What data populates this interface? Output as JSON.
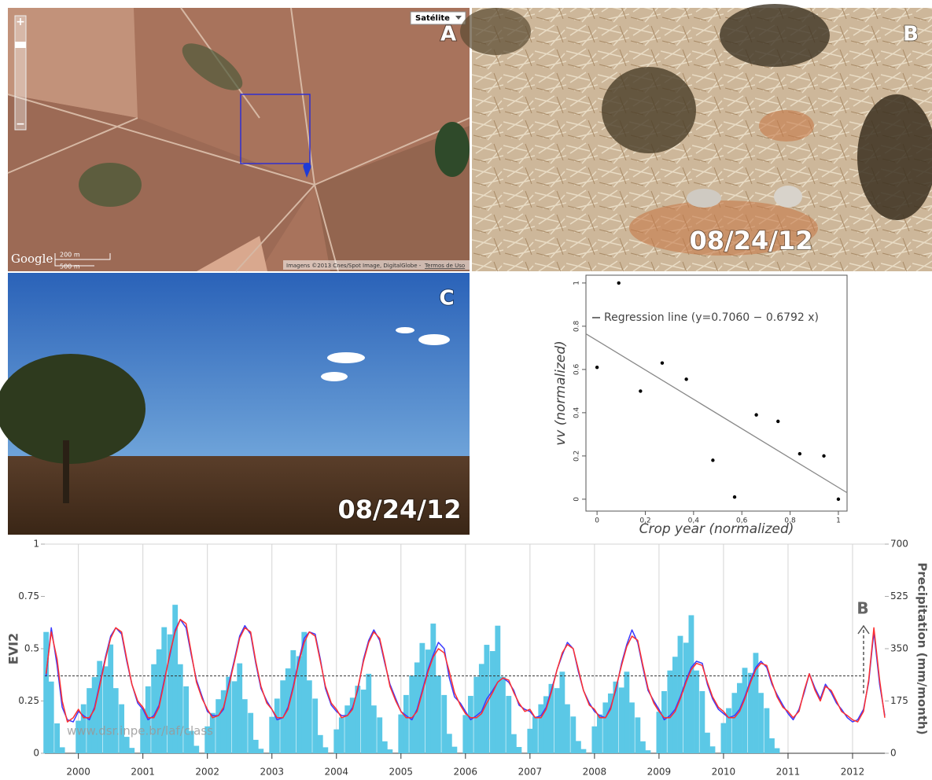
{
  "panels": {
    "A": {
      "label": "A",
      "layer_button": "Satélite",
      "zoom_in": "+",
      "zoom_out": "−",
      "logo": "Google",
      "scale_top": "200 m",
      "scale_bottom": "500 m",
      "attribution": "Imagens ©2013 Cnes/Spot Image, DigitalGlobe -",
      "terms": "Termos de Uso"
    },
    "B": {
      "label": "B",
      "date": "08/24/12"
    },
    "C": {
      "label": "C",
      "date": "08/24/12"
    }
  },
  "chart_data": [
    {
      "type": "scatter",
      "x_label": "Crop year (normalized)",
      "y_label": "vv (normalized)",
      "x": [
        0,
        0.09,
        0.18,
        0.27,
        0.37,
        0.48,
        0.57,
        0.66,
        0.75,
        0.84,
        0.94,
        1
      ],
      "values": [
        0.61,
        1,
        0.5,
        0.63,
        0.555,
        0.18,
        0.01,
        0.39,
        0.36,
        0.21,
        0.2,
        0
      ],
      "color": "#000000",
      "regression": {
        "name": "Regression line (y=0.7060 − 0.6792 x)",
        "color": "#888888",
        "x": [
          -0.046,
          1.036
        ],
        "values": [
          0.765,
          0.03
        ]
      },
      "xlim": [
        -0.046,
        1.036
      ],
      "ylim": [
        -0.055,
        1.036
      ],
      "xticks": [
        0,
        {
          "value": 0.2,
          "label": "0,2"
        },
        {
          "value": 0.4,
          "label": "0,4"
        },
        {
          "value": 0.6,
          "label": "0,6"
        },
        {
          "value": 0.8,
          "label": "0,8"
        },
        1
      ],
      "yticks": [
        0,
        0.2,
        0.4,
        0.6,
        0.8,
        1
      ]
    },
    {
      "type": "combo",
      "y_label": "EVI2",
      "y2_label": "Precipitation (mm/month)",
      "annotation": "B",
      "watermark": "www.dsr.inpe.br/laf/class",
      "threshold": 0.37,
      "grid": true,
      "xlim": [
        1999.48,
        2012.5
      ],
      "xticks": [
        2000,
        2001,
        2002,
        2003,
        2004,
        2005,
        2006,
        2007,
        2008,
        2009,
        2010,
        2011,
        2012
      ],
      "ylim": [
        0,
        1
      ],
      "yticks": [
        0,
        0.25,
        0.5,
        0.75,
        1
      ],
      "y2lim": [
        0,
        700
      ],
      "y2ticks": [
        0,
        175,
        350,
        525,
        700
      ],
      "x": [
        1999.5,
        1999.58,
        1999.67,
        1999.75,
        1999.83,
        1999.92,
        2000,
        2000.08,
        2000.17,
        2000.25,
        2000.33,
        2000.42,
        2000.5,
        2000.58,
        2000.67,
        2000.75,
        2000.83,
        2000.92,
        2001,
        2001.08,
        2001.17,
        2001.25,
        2001.33,
        2001.42,
        2001.5,
        2001.58,
        2001.67,
        2001.75,
        2001.83,
        2001.92,
        2002,
        2002.08,
        2002.17,
        2002.25,
        2002.33,
        2002.42,
        2002.5,
        2002.58,
        2002.67,
        2002.75,
        2002.83,
        2002.92,
        2003,
        2003.08,
        2003.17,
        2003.25,
        2003.33,
        2003.42,
        2003.5,
        2003.58,
        2003.67,
        2003.75,
        2003.83,
        2003.92,
        2004,
        2004.08,
        2004.17,
        2004.25,
        2004.33,
        2004.42,
        2004.5,
        2004.58,
        2004.67,
        2004.75,
        2004.83,
        2004.92,
        2005,
        2005.08,
        2005.17,
        2005.25,
        2005.33,
        2005.42,
        2005.5,
        2005.58,
        2005.67,
        2005.75,
        2005.83,
        2005.92,
        2006,
        2006.08,
        2006.17,
        2006.25,
        2006.33,
        2006.42,
        2006.5,
        2006.58,
        2006.67,
        2006.75,
        2006.83,
        2006.92,
        2007,
        2007.08,
        2007.17,
        2007.25,
        2007.33,
        2007.42,
        2007.5,
        2007.58,
        2007.67,
        2007.75,
        2007.83,
        2007.92,
        2008,
        2008.08,
        2008.17,
        2008.25,
        2008.33,
        2008.42,
        2008.5,
        2008.58,
        2008.67,
        2008.75,
        2008.83,
        2008.92,
        2009,
        2009.08,
        2009.17,
        2009.25,
        2009.33,
        2009.42,
        2009.5,
        2009.58,
        2009.67,
        2009.75,
        2009.83,
        2009.92,
        2010,
        2010.08,
        2010.17,
        2010.25,
        2010.33,
        2010.42,
        2010.5,
        2010.58,
        2010.67,
        2010.75,
        2010.83,
        2010.92,
        2011,
        2011.08,
        2011.17,
        2011.25,
        2011.33,
        2011.42,
        2011.5,
        2011.58,
        2011.67,
        2011.75,
        2011.83,
        2011.92,
        2012,
        2012.08,
        2012.17,
        2012.25,
        2012.33,
        2012.42,
        2012.5
      ],
      "series": [
        {
          "type": "bar",
          "axis": "y2",
          "color": "#5bc8e6",
          "values": [
            406,
            240,
            100,
            20,
            0,
            0,
            109,
            164,
            218,
            255,
            309,
            291,
            364,
            218,
            164,
            55,
            18,
            0,
            149,
            224,
            298,
            348,
            422,
            398,
            497,
            298,
            224,
            75,
            25,
            0,
            90,
            135,
            181,
            211,
            256,
            241,
            301,
            181,
            135,
            45,
            15,
            0,
            122,
            183,
            244,
            284,
            345,
            325,
            406,
            244,
            183,
            61,
            20,
            0,
            80,
            120,
            160,
            186,
            226,
            213,
            266,
            160,
            120,
            40,
            13,
            0,
            130,
            195,
            260,
            304,
            369,
            347,
            434,
            260,
            195,
            65,
            22,
            0,
            128,
            192,
            256,
            299,
            363,
            342,
            427,
            256,
            192,
            64,
            21,
            0,
            82,
            123,
            164,
            191,
            232,
            218,
            273,
            164,
            123,
            41,
            14,
            0,
            90,
            130,
            170,
            200,
            240,
            220,
            273,
            170,
            120,
            40,
            10,
            0,
            139,
            208,
            277,
            323,
            393,
            370,
            462,
            277,
            208,
            69,
            23,
            0,
            101,
            151,
            202,
            235,
            286,
            269,
            336,
            202,
            151,
            50,
            17,
            0,
            0,
            0,
            0,
            0,
            0,
            0,
            0,
            0,
            0,
            0,
            0,
            0,
            0,
            0,
            0,
            0,
            0,
            0,
            0
          ]
        },
        {
          "type": "line",
          "color": "#3a3aff",
          "values": [
            0.37,
            0.6,
            0.42,
            0.22,
            0.16,
            0.15,
            0.2,
            0.18,
            0.16,
            0.22,
            0.33,
            0.46,
            0.56,
            0.6,
            0.57,
            0.44,
            0.33,
            0.24,
            0.21,
            0.16,
            0.18,
            0.23,
            0.35,
            0.47,
            0.59,
            0.64,
            0.6,
            0.47,
            0.35,
            0.27,
            0.2,
            0.18,
            0.18,
            0.21,
            0.33,
            0.45,
            0.56,
            0.61,
            0.57,
            0.43,
            0.31,
            0.25,
            0.21,
            0.16,
            0.17,
            0.22,
            0.32,
            0.45,
            0.55,
            0.58,
            0.57,
            0.45,
            0.31,
            0.23,
            0.2,
            0.18,
            0.18,
            0.22,
            0.3,
            0.45,
            0.54,
            0.59,
            0.54,
            0.43,
            0.33,
            0.26,
            0.2,
            0.18,
            0.16,
            0.21,
            0.3,
            0.4,
            0.47,
            0.53,
            0.5,
            0.36,
            0.27,
            0.24,
            0.2,
            0.16,
            0.18,
            0.2,
            0.26,
            0.3,
            0.34,
            0.36,
            0.34,
            0.3,
            0.23,
            0.21,
            0.2,
            0.17,
            0.18,
            0.22,
            0.3,
            0.4,
            0.47,
            0.53,
            0.5,
            0.39,
            0.3,
            0.24,
            0.2,
            0.18,
            0.17,
            0.22,
            0.3,
            0.43,
            0.52,
            0.59,
            0.53,
            0.41,
            0.3,
            0.25,
            0.21,
            0.16,
            0.18,
            0.21,
            0.27,
            0.35,
            0.41,
            0.44,
            0.43,
            0.33,
            0.26,
            0.21,
            0.19,
            0.17,
            0.18,
            0.21,
            0.27,
            0.35,
            0.41,
            0.44,
            0.41,
            0.33,
            0.28,
            0.23,
            0.19,
            0.16,
            0.21,
            0.29,
            0.38,
            0.31,
            0.26,
            0.33,
            0.29,
            0.24,
            0.21,
            0.17,
            0.15,
            0.16,
            0.21,
            0.34,
            0.58,
            0.33,
            0.18
          ]
        },
        {
          "type": "line",
          "color": "#ff3030",
          "values": [
            0.38,
            0.58,
            0.45,
            0.25,
            0.15,
            0.17,
            0.21,
            0.17,
            0.17,
            0.21,
            0.32,
            0.45,
            0.55,
            0.6,
            0.58,
            0.45,
            0.33,
            0.25,
            0.22,
            0.17,
            0.17,
            0.22,
            0.34,
            0.48,
            0.58,
            0.64,
            0.62,
            0.48,
            0.34,
            0.26,
            0.21,
            0.17,
            0.18,
            0.22,
            0.32,
            0.44,
            0.55,
            0.6,
            0.58,
            0.44,
            0.32,
            0.24,
            0.21,
            0.17,
            0.17,
            0.21,
            0.31,
            0.44,
            0.53,
            0.58,
            0.56,
            0.44,
            0.32,
            0.24,
            0.21,
            0.17,
            0.18,
            0.21,
            0.31,
            0.44,
            0.53,
            0.58,
            0.55,
            0.44,
            0.32,
            0.25,
            0.2,
            0.17,
            0.17,
            0.2,
            0.29,
            0.39,
            0.46,
            0.5,
            0.48,
            0.39,
            0.29,
            0.23,
            0.19,
            0.17,
            0.17,
            0.19,
            0.24,
            0.29,
            0.34,
            0.36,
            0.35,
            0.29,
            0.24,
            0.2,
            0.21,
            0.17,
            0.17,
            0.21,
            0.29,
            0.4,
            0.48,
            0.52,
            0.5,
            0.4,
            0.3,
            0.23,
            0.21,
            0.17,
            0.17,
            0.21,
            0.31,
            0.42,
            0.51,
            0.56,
            0.54,
            0.42,
            0.31,
            0.24,
            0.2,
            0.17,
            0.17,
            0.2,
            0.26,
            0.34,
            0.4,
            0.43,
            0.42,
            0.34,
            0.27,
            0.22,
            0.2,
            0.17,
            0.17,
            0.2,
            0.26,
            0.34,
            0.4,
            0.43,
            0.42,
            0.34,
            0.27,
            0.22,
            0.2,
            0.17,
            0.2,
            0.3,
            0.38,
            0.3,
            0.25,
            0.32,
            0.3,
            0.25,
            0.2,
            0.18,
            0.16,
            0.15,
            0.2,
            0.35,
            0.6,
            0.35,
            0.17
          ]
        }
      ]
    }
  ]
}
